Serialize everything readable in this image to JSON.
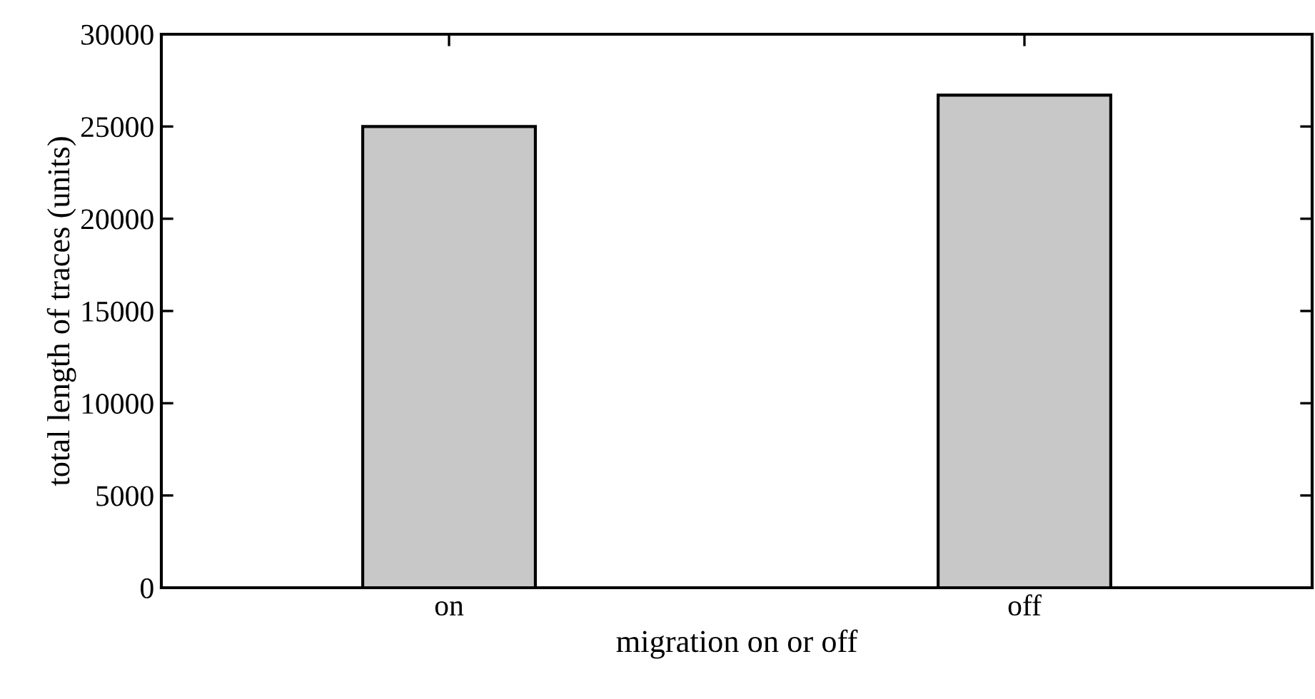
{
  "chart_data": {
    "type": "bar",
    "xlabel": "migration on or off",
    "ylabel": "total length of traces (units)",
    "categories": [
      "on",
      "off"
    ],
    "values": [
      25000,
      26700
    ],
    "color": "#c8c8c8",
    "ylim": [
      0,
      30000
    ],
    "yticks": [
      0,
      5000,
      10000,
      15000,
      20000,
      25000,
      30000
    ],
    "grid": false
  }
}
